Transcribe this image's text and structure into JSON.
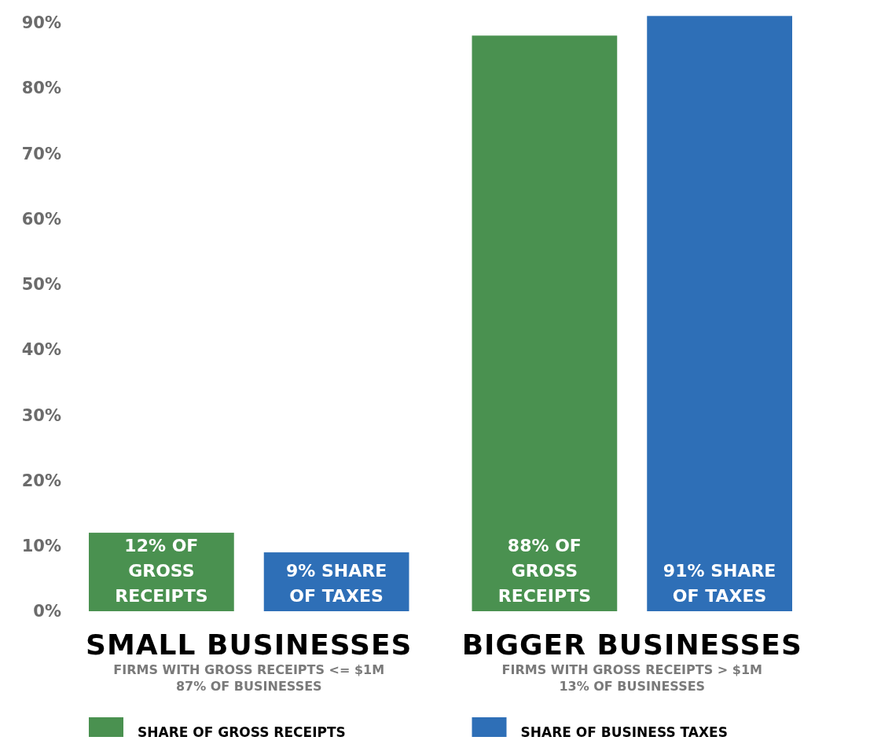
{
  "chart_data": {
    "type": "bar",
    "categories": [
      "SMALL BUSINESSES",
      "BIGGER BUSINESSES"
    ],
    "series": [
      {
        "name": "SHARE OF GROSS RECEIPTS",
        "color": "#4a9150",
        "values": [
          12,
          88
        ],
        "value_labels": [
          "12% OF GROSS RECEIPTS",
          "88% OF GROSS RECEIPTS"
        ]
      },
      {
        "name": "SHARE OF BUSINESS TAXES",
        "color": "#2e6fb7",
        "values": [
          9,
          91
        ],
        "value_labels": [
          "9% SHARE OF TAXES",
          "91% SHARE OF TAXES"
        ]
      }
    ],
    "ylim": [
      0,
      92
    ],
    "yticks": [
      {
        "value": 0,
        "label": "0%"
      },
      {
        "value": 10,
        "label": "10%"
      },
      {
        "value": 20,
        "label": "20%"
      },
      {
        "value": 30,
        "label": "30%"
      },
      {
        "value": 40,
        "label": "40%"
      },
      {
        "value": 50,
        "label": "50%"
      },
      {
        "value": 60,
        "label": "60%"
      },
      {
        "value": 70,
        "label": "70%"
      },
      {
        "value": 80,
        "label": "80%"
      },
      {
        "value": 90,
        "label": "90%"
      }
    ],
    "grid": false,
    "legend": "bottom",
    "annotations": [
      "FIRMS WITH GROSS RECEIPTS <= $1M",
      "87% OF BUSINESSES",
      "FIRMS WITH GROSS RECEIPTS > $1M",
      "13% OF BUSINESSES"
    ]
  }
}
